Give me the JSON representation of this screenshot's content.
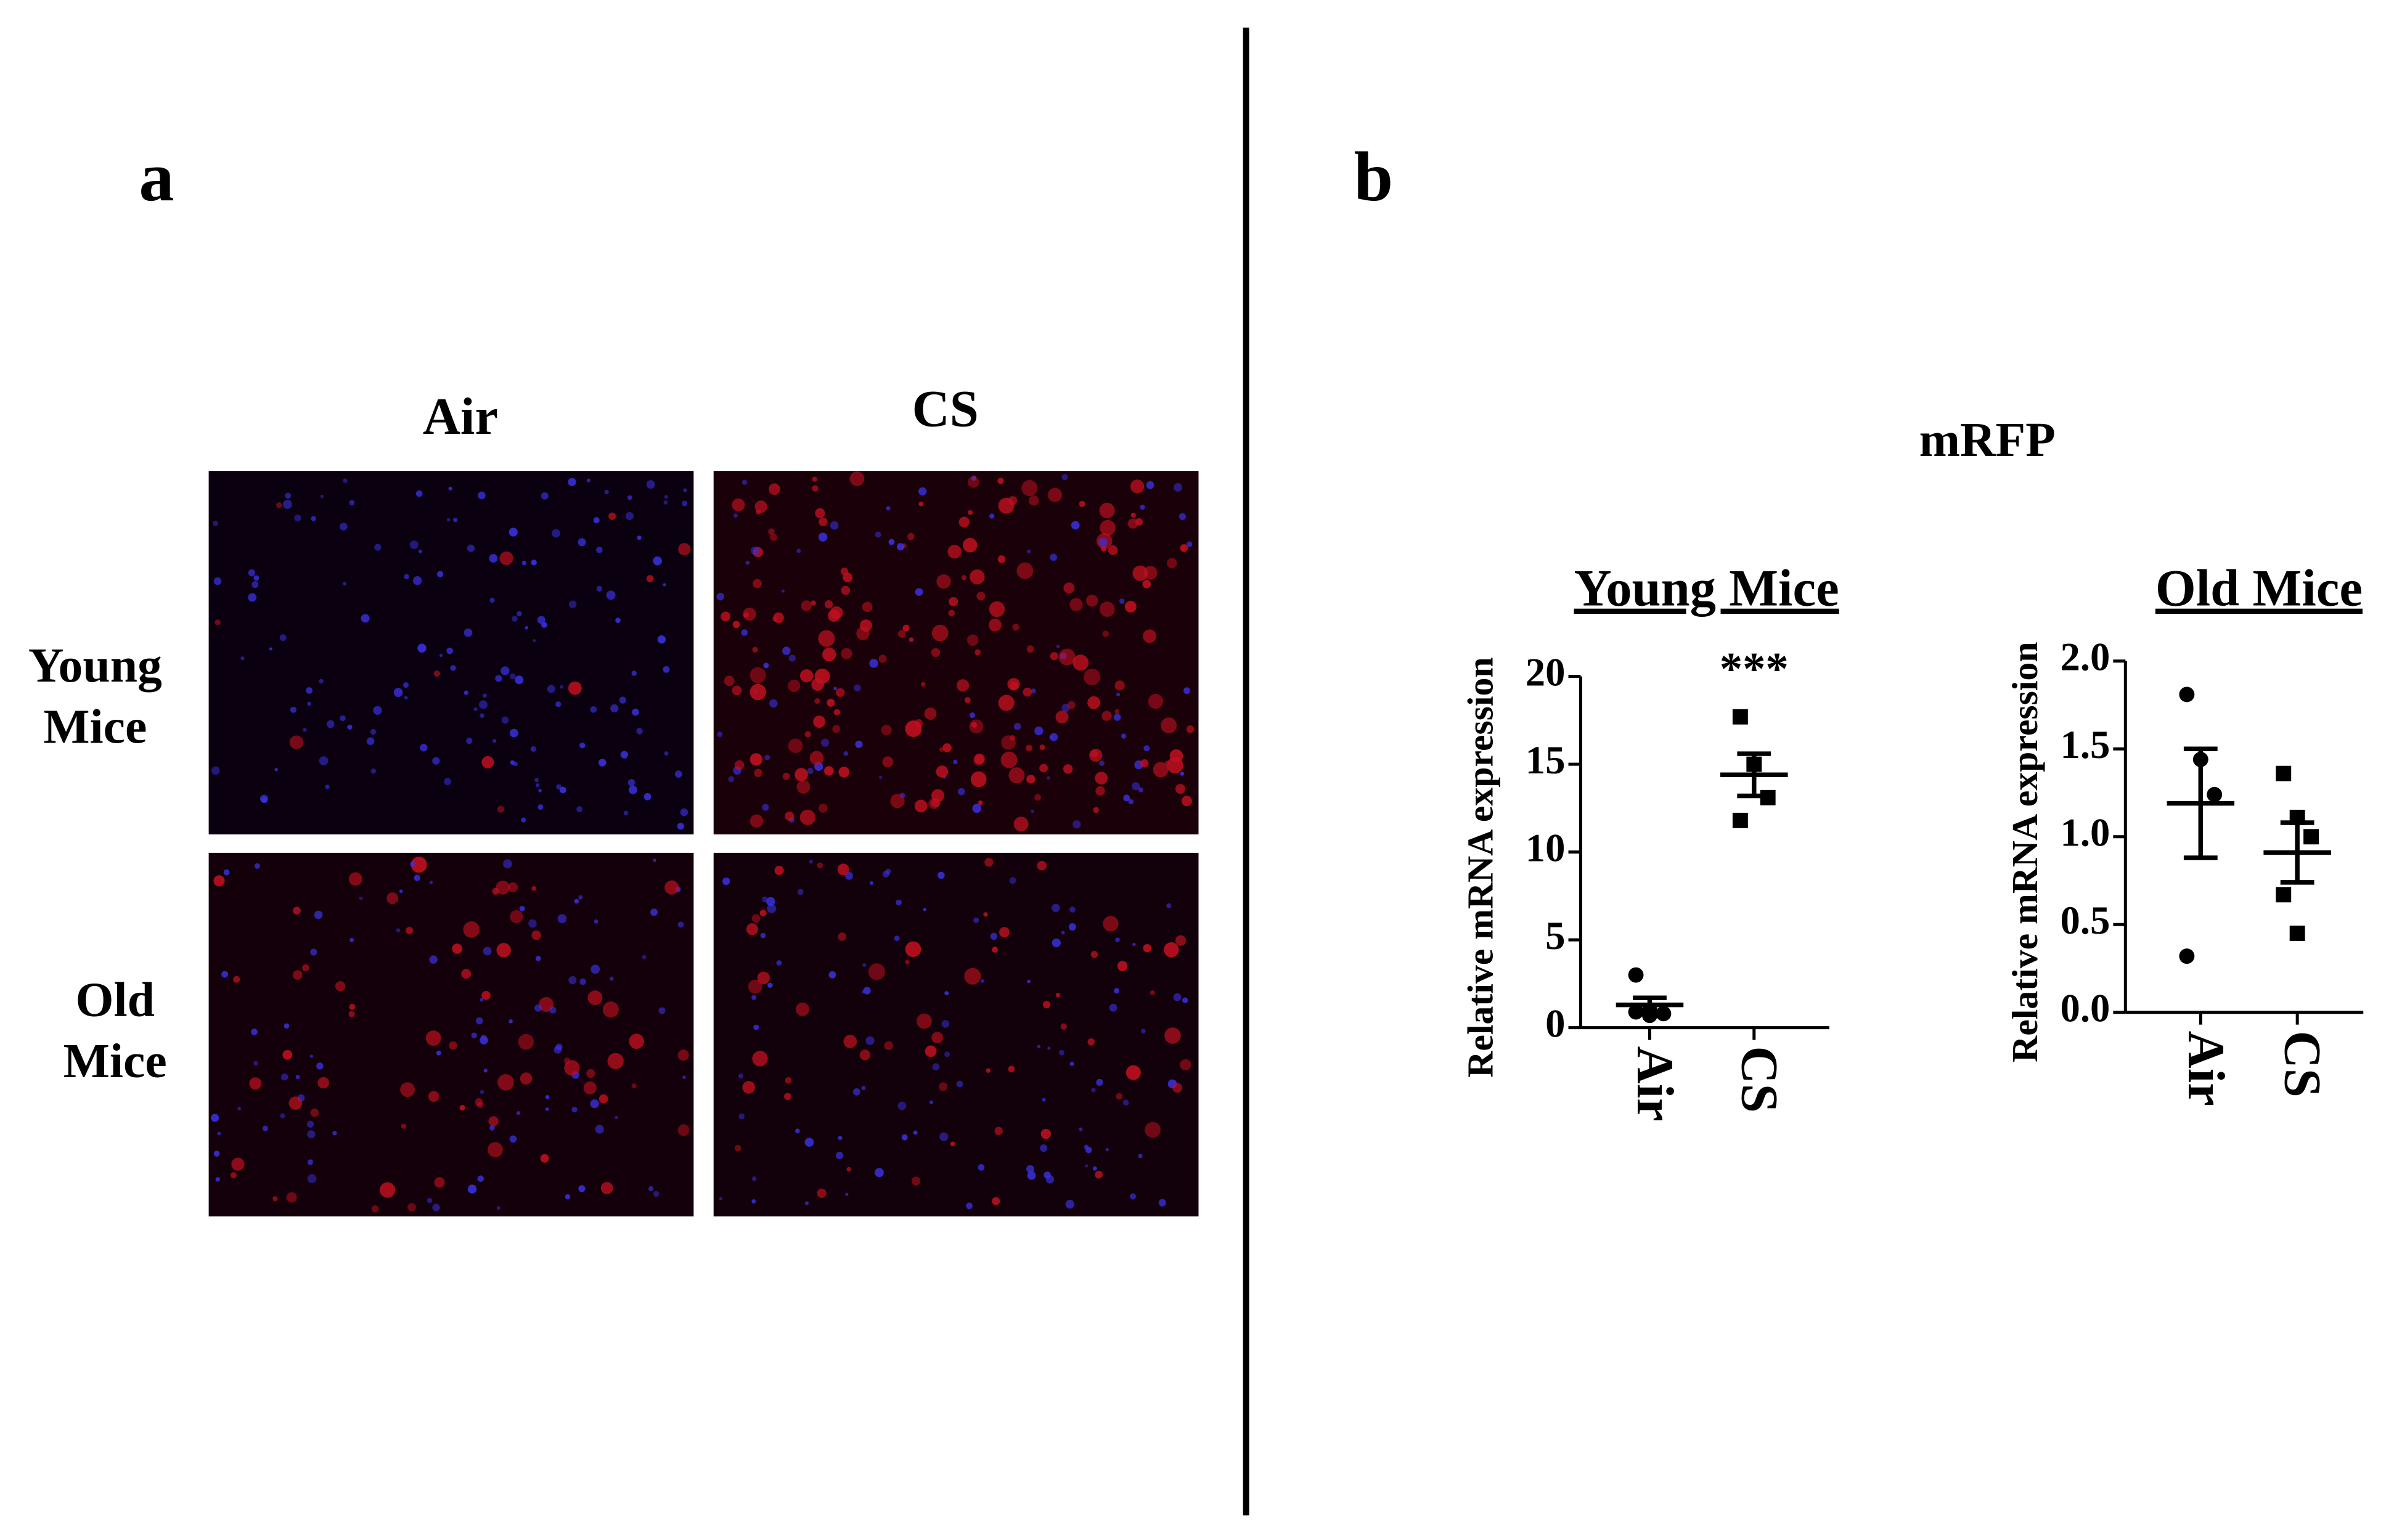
{
  "panel_a": {
    "label": "a",
    "columns": [
      "Air",
      "CS"
    ],
    "row_labels": [
      [
        "Young",
        "Mice"
      ],
      [
        "Old",
        "Mice"
      ]
    ]
  },
  "panel_b": {
    "label": "b",
    "title": "mRFP"
  },
  "chart_data": [
    {
      "type": "dot",
      "title": "Young Mice",
      "ylabel": "Relative mRNA expression",
      "categories": [
        "Air",
        "CS"
      ],
      "values": [
        [
          3.0,
          1.0,
          0.8,
          0.9,
          0.7
        ],
        [
          17.7,
          15.0,
          13.1,
          11.8
        ]
      ],
      "means": [
        1.3,
        14.4
      ],
      "sems": [
        0.4,
        1.2
      ],
      "markers": [
        "circle",
        "square"
      ],
      "annotation": "***",
      "color": "#000000",
      "ylim": [
        0,
        20
      ],
      "yticks": [
        0,
        5,
        10,
        15,
        20
      ]
    },
    {
      "type": "dot",
      "title": "Old Mice",
      "ylabel": "Relative mRNA expression",
      "categories": [
        "Air",
        "CS"
      ],
      "values": [
        [
          1.81,
          1.44,
          1.24,
          0.32
        ],
        [
          1.36,
          1.11,
          1.0,
          0.67,
          0.45
        ]
      ],
      "means": [
        1.19,
        0.91
      ],
      "sems": [
        0.31,
        0.17
      ],
      "markers": [
        "circle",
        "square"
      ],
      "color": "#000000",
      "ylim": [
        0,
        2
      ],
      "yticks": [
        {
          "value": 0,
          "label": "0.0"
        },
        {
          "value": 0.5,
          "label": "0.5"
        },
        {
          "value": 1,
          "label": "1.0"
        },
        {
          "value": 1.5,
          "label": "1.5"
        },
        {
          "value": 2,
          "label": "2.0"
        }
      ]
    }
  ]
}
